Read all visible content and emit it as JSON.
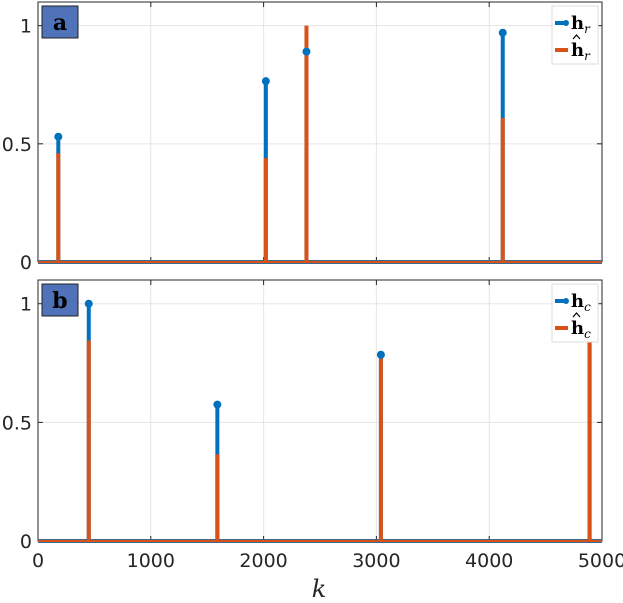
{
  "colors": {
    "true_series": "#0072BD",
    "estimate_series": "#D95319",
    "tag_fill": "#4F72B8",
    "grid": "#E5E5E5",
    "axis": "#262626"
  },
  "xlabel": "k",
  "chart_data": [
    {
      "type": "stem",
      "panel_label": "a",
      "xlim": [
        0,
        5000
      ],
      "ylim": [
        0,
        1.1
      ],
      "xticks": [
        0,
        1000,
        2000,
        3000,
        4000,
        5000
      ],
      "xtick_labels": [
        "",
        "",
        "",
        "",
        "",
        ""
      ],
      "yticks": [
        0,
        0.5,
        1
      ],
      "ytick_labels": [
        "0",
        "0.5",
        "1"
      ],
      "grid": true,
      "legend_position": "top-right",
      "series": [
        {
          "name": "h_r",
          "legend_main": "h",
          "legend_sub": "r",
          "legend_hat": false,
          "marker": "filled-circle",
          "x": [
            180,
            2020,
            2380,
            4120
          ],
          "y": [
            0.53,
            0.765,
            0.89,
            0.97
          ]
        },
        {
          "name": "ĥ_r",
          "legend_main": "h",
          "legend_sub": "r",
          "legend_hat": true,
          "marker": "none",
          "x": [
            180,
            2020,
            2380,
            4120
          ],
          "y": [
            0.46,
            0.44,
            1.0,
            0.61
          ]
        }
      ]
    },
    {
      "type": "stem",
      "panel_label": "b",
      "xlim": [
        0,
        5000
      ],
      "ylim": [
        0,
        1.1
      ],
      "xticks": [
        0,
        1000,
        2000,
        3000,
        4000,
        5000
      ],
      "xtick_labels": [
        "0",
        "1000",
        "2000",
        "3000",
        "4000",
        "5000"
      ],
      "yticks": [
        0,
        0.5,
        1
      ],
      "ytick_labels": [
        "0",
        "0.5",
        "1"
      ],
      "grid": true,
      "legend_position": "top-right",
      "series": [
        {
          "name": "h_c",
          "legend_main": "h",
          "legend_sub": "c",
          "legend_hat": false,
          "marker": "filled-circle",
          "x": [
            450,
            1590,
            3040,
            4890
          ],
          "y": [
            1.0,
            0.575,
            0.785,
            0.93
          ]
        },
        {
          "name": "ĥ_c",
          "legend_main": "h",
          "legend_sub": "c",
          "legend_hat": true,
          "marker": "none",
          "x": [
            450,
            1590,
            3040,
            4890
          ],
          "y": [
            0.845,
            0.365,
            0.775,
            0.895
          ]
        }
      ]
    }
  ]
}
